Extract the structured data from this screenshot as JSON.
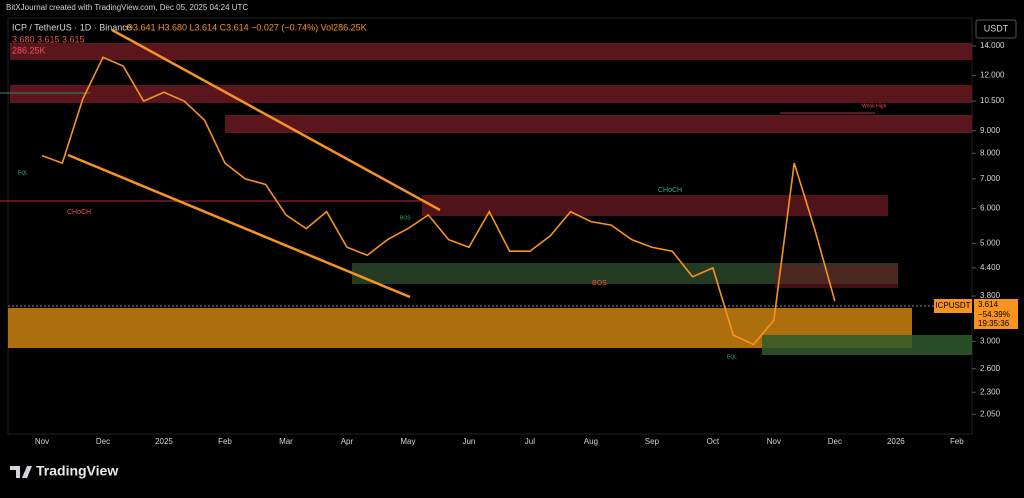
{
  "chart_data": {
    "type": "line",
    "credit": "BitXJournal created with TradingView.com, Dec 05, 2025 04:24 UTC",
    "title": "ICP / TetherUS · 1D · Binance",
    "ohlc": "O3.641 H3.680 L3.614 C3.614 −0.027 (−0.74%) Vol286.25K",
    "ohlc2": "3.680  3.615  3.615",
    "volume_text": "286.25K",
    "currency": "USDT",
    "brand": "TradingView",
    "price_tag": {
      "symbol": "ICPUSDT",
      "price": "3.614",
      "change": "−54.39%",
      "countdown": "19:35:36"
    },
    "annotations": [
      "CHoCH",
      "CHoCH",
      "BOS",
      "Weak High",
      "EQL",
      "EQL",
      "BOS"
    ],
    "log_scale": true,
    "categories": [
      "Nov",
      null,
      null,
      "Dec",
      null,
      null,
      "2025",
      null,
      null,
      "Feb",
      null,
      null,
      "Mar",
      null,
      null,
      "Apr",
      null,
      null,
      "May",
      null,
      null,
      "Jun",
      null,
      null,
      "Jul",
      null,
      null,
      "Aug",
      null,
      null,
      "Sep",
      null,
      null,
      "Oct",
      null,
      null,
      "Nov",
      null,
      null,
      "Dec",
      null,
      null,
      "2026",
      null,
      null,
      "Feb"
    ],
    "series": [
      {
        "name": "ICPUSDT",
        "color": "#f7931e",
        "values": [
          7.9,
          7.6,
          10.6,
          13.2,
          12.6,
          10.5,
          11.0,
          10.5,
          9.5,
          7.6,
          7.0,
          6.8,
          5.8,
          5.4,
          5.9,
          4.9,
          4.7,
          5.1,
          5.4,
          5.8,
          5.1,
          4.9,
          5.9,
          4.8,
          4.8,
          5.2,
          5.9,
          5.6,
          5.5,
          5.1,
          4.9,
          4.8,
          4.2,
          4.4,
          3.1,
          2.95,
          3.35,
          7.6,
          5.4,
          3.7,
          null,
          null,
          null,
          null,
          null,
          null
        ]
      }
    ],
    "ylim": [
      1.85,
      16.2
    ],
    "yticks": [
      {
        "value": 14,
        "label": "14.000"
      },
      {
        "value": 12,
        "label": "12.000"
      },
      {
        "value": 10.5,
        "label": "10.500"
      },
      {
        "value": 9,
        "label": "9.000"
      },
      {
        "value": 8,
        "label": "8.000"
      },
      {
        "value": 7,
        "label": "7.000"
      },
      {
        "value": 6,
        "label": "6.000"
      },
      {
        "value": 5,
        "label": "5.000"
      },
      {
        "value": 4.4,
        "label": "4.400"
      },
      {
        "value": 3.8,
        "label": "3.800"
      },
      {
        "value": 3,
        "label": "3.000"
      },
      {
        "value": 2.6,
        "label": "2.600"
      },
      {
        "value": 2.3,
        "label": "2.300"
      },
      {
        "value": 2.05,
        "label": "2.050"
      }
    ],
    "grid": false
  }
}
